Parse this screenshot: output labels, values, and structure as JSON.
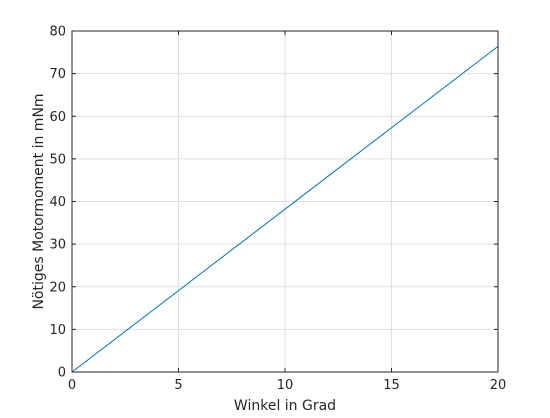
{
  "chart_data": {
    "type": "line",
    "title": "",
    "xlabel": "Winkel in Grad",
    "ylabel": "Nötiges Motormoment in mNm",
    "xlim": [
      0,
      20
    ],
    "ylim": [
      0,
      80
    ],
    "xticks": [
      0,
      5,
      10,
      15,
      20
    ],
    "yticks": [
      0,
      10,
      20,
      30,
      40,
      50,
      60,
      70,
      80
    ],
    "grid": true,
    "legend": "none",
    "series": [
      {
        "color": "#0072bd",
        "x": [
          0,
          5,
          10,
          15,
          20
        ],
        "y": [
          0,
          19.1,
          38.2,
          57.3,
          76.4
        ]
      }
    ]
  }
}
